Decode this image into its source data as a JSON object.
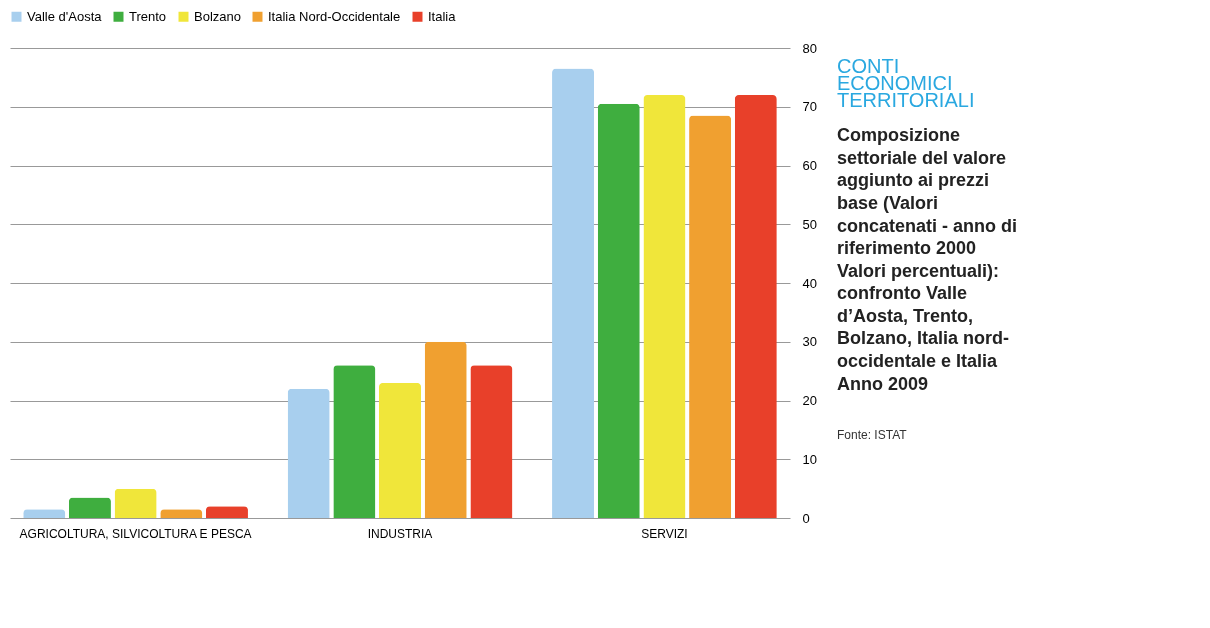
{
  "chart_data": {
    "type": "bar",
    "title": "CONTI ECONOMICI TERRITORIALI",
    "subtitle": "Composizione settoriale del valore aggiunto ai prezzi base (Valori concatenati - anno di riferimento 2000 Valori percentuali): confronto Valle d’Aosta, Trento, Bolzano, Italia nord-occidentale e Italia Anno 2009",
    "annotations": [
      "Fonte: ISTAT"
    ],
    "categories": [
      "AGRICOLTURA, SILVICOLTURA E PESCA",
      "INDUSTRIA",
      "SERVIZI"
    ],
    "series": [
      {
        "name": "Valle d'Aosta",
        "color": "#a8cfee",
        "values": [
          1.5,
          22,
          76.5
        ]
      },
      {
        "name": "Trento",
        "color": "#3fae3f",
        "values": [
          3.5,
          26,
          70.5
        ]
      },
      {
        "name": "Bolzano",
        "color": "#f0e63a",
        "values": [
          5,
          23,
          72
        ]
      },
      {
        "name": "Italia Nord-Occidentale",
        "color": "#f0a030",
        "values": [
          1.5,
          30,
          68.5
        ]
      },
      {
        "name": "Italia",
        "color": "#e8402a",
        "values": [
          2,
          26,
          72
        ]
      }
    ],
    "ylim": [
      0,
      80
    ],
    "yticks": [
      0,
      10,
      20,
      30,
      40,
      50,
      60,
      70,
      80
    ],
    "grid": "y",
    "legend": "top"
  }
}
